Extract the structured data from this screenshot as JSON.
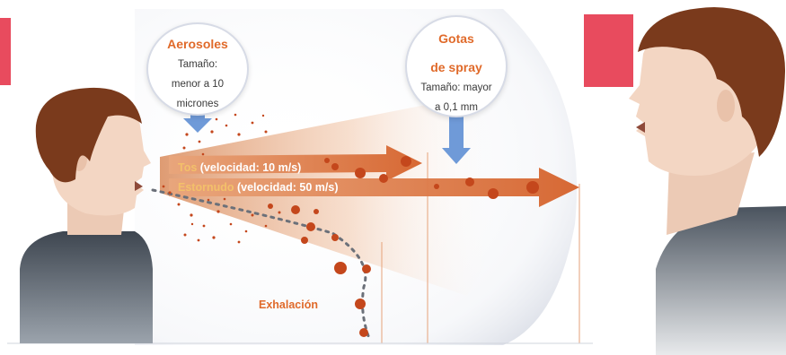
{
  "aerosols": {
    "title": "Aerosoles",
    "size": [
      "Tamaño:",
      "menor a 10",
      "micrones"
    ]
  },
  "spray": {
    "title": [
      "Gotas",
      "de spray"
    ],
    "size": [
      "Tamaño: mayor",
      "a 0,1 mm"
    ]
  },
  "cough": {
    "keyword": "Tos",
    "rest": " (velocidad: 10 m/s)"
  },
  "sneeze": {
    "keyword": "Estornudo",
    "rest": " (velocidad: 50 m/s)"
  },
  "exhalation": "Exhalación",
  "colors": {
    "accent_pink": "#e84b5e",
    "orange": "#e06a2a",
    "droplet": "#c4471c",
    "arrow_blue": "#6f9ad8",
    "hair": "#7a3a1c",
    "skin": "#f3d6c3",
    "shirt": "#505a66"
  }
}
